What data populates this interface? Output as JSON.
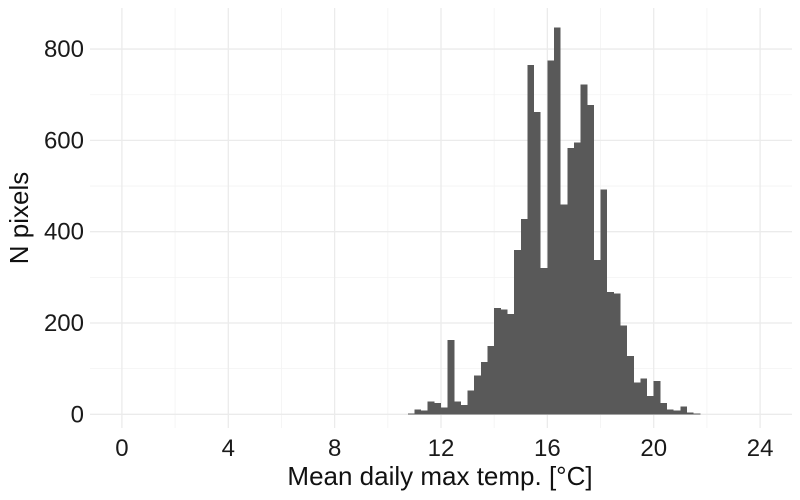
{
  "chart_data": {
    "type": "bar",
    "xlabel": "Mean daily max temp. [°C]",
    "ylabel": "N pixels",
    "xlim": [
      -1.2,
      25.2
    ],
    "ylim": [
      -30,
      890
    ],
    "x_ticks": [
      0,
      4,
      8,
      12,
      16,
      20,
      24
    ],
    "y_ticks": [
      0,
      200,
      400,
      600,
      800
    ],
    "x_tick_labels": [
      "0",
      "4",
      "8",
      "12",
      "16",
      "20",
      "24"
    ],
    "y_tick_labels": [
      "0",
      "200",
      "400",
      "600",
      "800"
    ],
    "grid": true,
    "bar_color": "#595959",
    "bin_width": 0.25,
    "x": [
      0.0,
      0.25,
      0.5,
      0.75,
      1.0,
      1.25,
      1.5,
      1.75,
      2.0,
      2.25,
      2.5,
      2.75,
      3.0,
      3.25,
      3.5,
      3.75,
      4.0,
      4.25,
      4.5,
      4.75,
      5.0,
      5.25,
      5.5,
      5.75,
      6.0,
      6.25,
      6.5,
      6.75,
      7.0,
      7.25,
      7.5,
      7.75,
      8.0,
      8.25,
      8.5,
      8.75,
      9.0,
      9.25,
      9.5,
      9.75,
      10.0,
      10.25,
      10.5,
      10.75,
      11.0,
      11.25,
      11.5,
      11.75,
      12.0,
      12.25,
      12.5,
      12.75,
      13.0,
      13.25,
      13.5,
      13.75,
      14.0,
      14.25,
      14.5,
      14.75,
      15.0,
      15.25,
      15.5,
      15.75,
      16.0,
      16.25,
      16.5,
      16.75,
      17.0,
      17.25,
      17.5,
      17.75,
      18.0,
      18.25,
      18.5,
      18.75,
      19.0,
      19.25,
      19.5,
      19.75,
      20.0,
      20.25,
      20.5,
      20.75,
      21.0,
      21.25,
      21.5,
      21.75,
      22.0,
      22.25,
      22.5,
      22.75,
      23.0,
      23.25,
      23.5,
      23.75
    ],
    "values": [
      0,
      0,
      0,
      0,
      0,
      0,
      0,
      0,
      0,
      0,
      0,
      0,
      0,
      0,
      0,
      0,
      0,
      0,
      0,
      0,
      0,
      0,
      0,
      0,
      0,
      0,
      0,
      0,
      0,
      0,
      0,
      0,
      0,
      0,
      0,
      0,
      0,
      0,
      0,
      0,
      0,
      0,
      0,
      2,
      10,
      8,
      28,
      25,
      15,
      163,
      28,
      20,
      52,
      85,
      115,
      150,
      233,
      230,
      220,
      360,
      428,
      765,
      662,
      320,
      775,
      847,
      460,
      583,
      595,
      722,
      678,
      338,
      492,
      268,
      265,
      195,
      128,
      70,
      78,
      40,
      73,
      25,
      10,
      8,
      17,
      4,
      2,
      0,
      0,
      0,
      0,
      0,
      0,
      0,
      0,
      0
    ]
  }
}
